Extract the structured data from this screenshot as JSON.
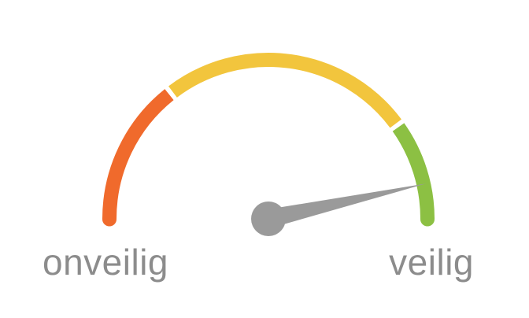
{
  "gauge": {
    "label_left": "onveilig",
    "label_right": "veilig",
    "value": 0.93,
    "segments": [
      {
        "name": "unsafe",
        "from": 0.0,
        "to": 0.29,
        "color": "#f06a2c"
      },
      {
        "name": "medium",
        "from": 0.29,
        "to": 0.8,
        "color": "#f2c53d"
      },
      {
        "name": "safe",
        "from": 0.8,
        "to": 1.0,
        "color": "#8cc043"
      }
    ],
    "needle_color": "#9a9a9a"
  }
}
